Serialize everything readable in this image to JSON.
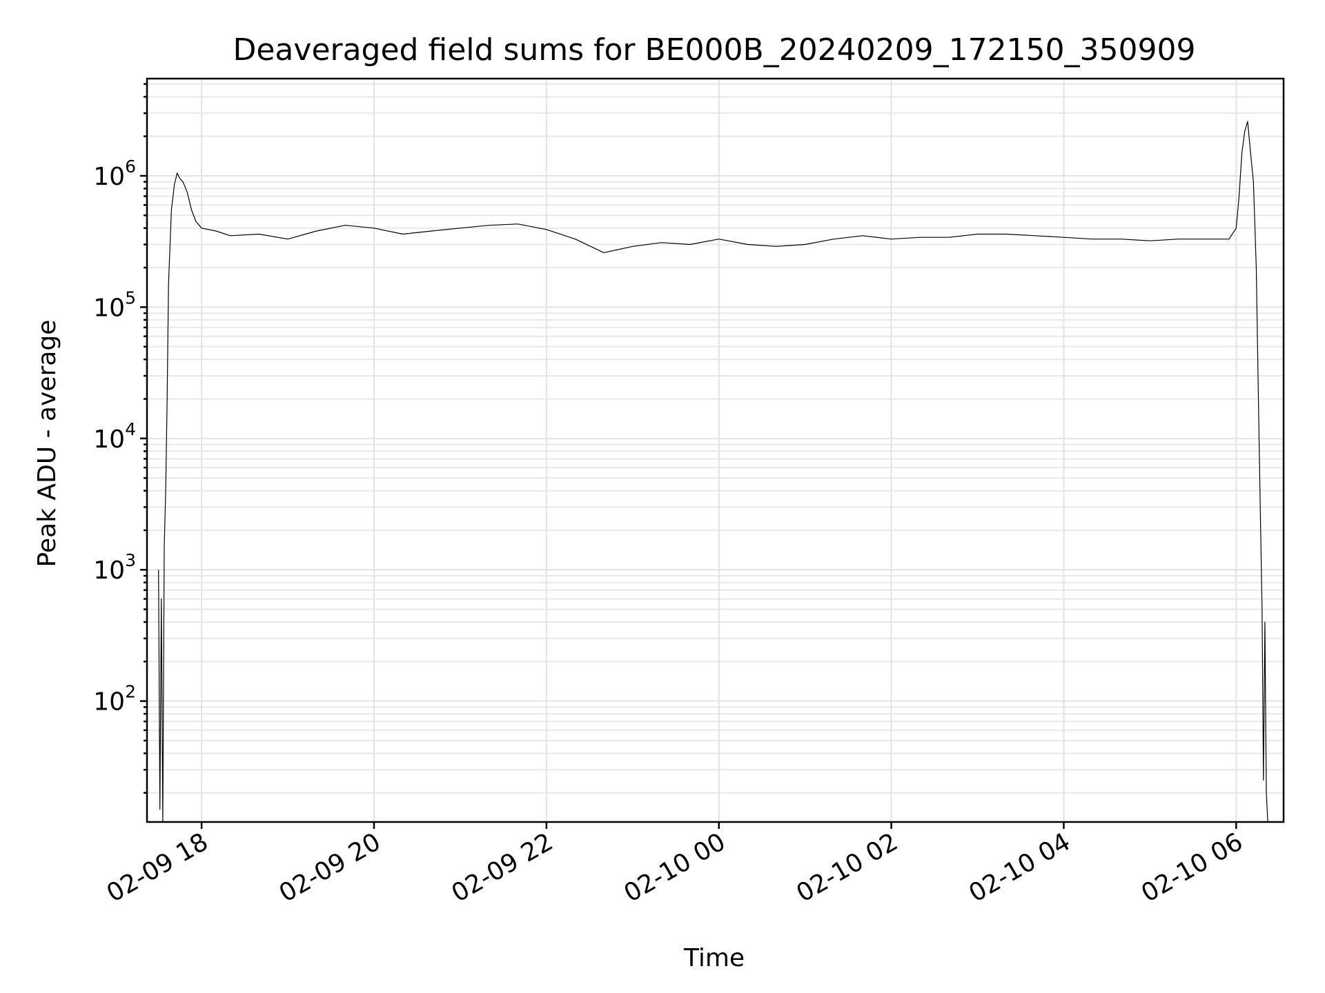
{
  "chart_data": {
    "type": "line",
    "title": "Deaveraged field sums for BE000B_20240209_172150_350909",
    "xlabel": "Time",
    "ylabel": "Peak ADU - average",
    "yscale": "log",
    "grid": true,
    "x_range": [
      "2024-02-09 17:22",
      "2024-02-10 06:33"
    ],
    "y_range": [
      12,
      5500000
    ],
    "x_ticks": [
      {
        "t": "2024-02-09 18:00",
        "label": "02-09 18"
      },
      {
        "t": "2024-02-09 20:00",
        "label": "02-09 20"
      },
      {
        "t": "2024-02-09 22:00",
        "label": "02-09 22"
      },
      {
        "t": "2024-02-10 00:00",
        "label": "02-10 00"
      },
      {
        "t": "2024-02-10 02:00",
        "label": "02-10 02"
      },
      {
        "t": "2024-02-10 04:00",
        "label": "02-10 04"
      },
      {
        "t": "2024-02-10 06:00",
        "label": "02-10 06"
      }
    ],
    "y_ticks": [
      {
        "value": 100,
        "base": "10",
        "exp": "2"
      },
      {
        "value": 1000,
        "base": "10",
        "exp": "3"
      },
      {
        "value": 10000,
        "base": "10",
        "exp": "4"
      },
      {
        "value": 100000,
        "base": "10",
        "exp": "5"
      },
      {
        "value": 1000000,
        "base": "10",
        "exp": "6"
      }
    ],
    "series": [
      {
        "color": "#000000",
        "x": [
          "2024-02-09 17:30",
          "2024-02-09 17:31",
          "2024-02-09 17:32",
          "2024-02-09 17:33",
          "2024-02-09 17:34",
          "2024-02-09 17:35",
          "2024-02-09 17:36",
          "2024-02-09 17:37",
          "2024-02-09 17:39",
          "2024-02-09 17:41",
          "2024-02-09 17:43",
          "2024-02-09 17:45",
          "2024-02-09 17:47",
          "2024-02-09 17:50",
          "2024-02-09 17:53",
          "2024-02-09 17:56",
          "2024-02-09 18:00",
          "2024-02-09 18:10",
          "2024-02-09 18:20",
          "2024-02-09 18:40",
          "2024-02-09 19:00",
          "2024-02-09 19:20",
          "2024-02-09 19:40",
          "2024-02-09 20:00",
          "2024-02-09 20:20",
          "2024-02-09 20:40",
          "2024-02-09 21:00",
          "2024-02-09 21:20",
          "2024-02-09 21:40",
          "2024-02-09 22:00",
          "2024-02-09 22:20",
          "2024-02-09 22:40",
          "2024-02-09 23:00",
          "2024-02-09 23:20",
          "2024-02-09 23:40",
          "2024-02-10 00:00",
          "2024-02-10 00:20",
          "2024-02-10 00:40",
          "2024-02-10 01:00",
          "2024-02-10 01:20",
          "2024-02-10 01:40",
          "2024-02-10 02:00",
          "2024-02-10 02:20",
          "2024-02-10 02:40",
          "2024-02-10 03:00",
          "2024-02-10 03:20",
          "2024-02-10 03:40",
          "2024-02-10 04:00",
          "2024-02-10 04:20",
          "2024-02-10 04:40",
          "2024-02-10 05:00",
          "2024-02-10 05:20",
          "2024-02-10 05:40",
          "2024-02-10 05:55",
          "2024-02-10 06:00",
          "2024-02-10 06:02",
          "2024-02-10 06:04",
          "2024-02-10 06:06",
          "2024-02-10 06:08",
          "2024-02-10 06:10",
          "2024-02-10 06:12",
          "2024-02-10 06:14",
          "2024-02-10 06:16",
          "2024-02-10 06:18",
          "2024-02-10 06:19",
          "2024-02-10 06:20",
          "2024-02-10 06:21",
          "2024-02-10 06:22"
        ],
        "y": [
          1000,
          15,
          600,
          12,
          1500,
          4000,
          20000,
          150000,
          550000,
          850000,
          1050000,
          950000,
          900000,
          750000,
          550000,
          450000,
          400000,
          380000,
          350000,
          360000,
          330000,
          380000,
          420000,
          400000,
          360000,
          380000,
          400000,
          420000,
          430000,
          390000,
          330000,
          260000,
          290000,
          310000,
          300000,
          330000,
          300000,
          290000,
          300000,
          330000,
          350000,
          330000,
          340000,
          340000,
          360000,
          360000,
          350000,
          340000,
          330000,
          330000,
          320000,
          330000,
          330000,
          330000,
          400000,
          700000,
          1500000,
          2200000,
          2600000,
          1500000,
          900000,
          200000,
          9000,
          500,
          25,
          400,
          20,
          12
        ]
      }
    ]
  }
}
